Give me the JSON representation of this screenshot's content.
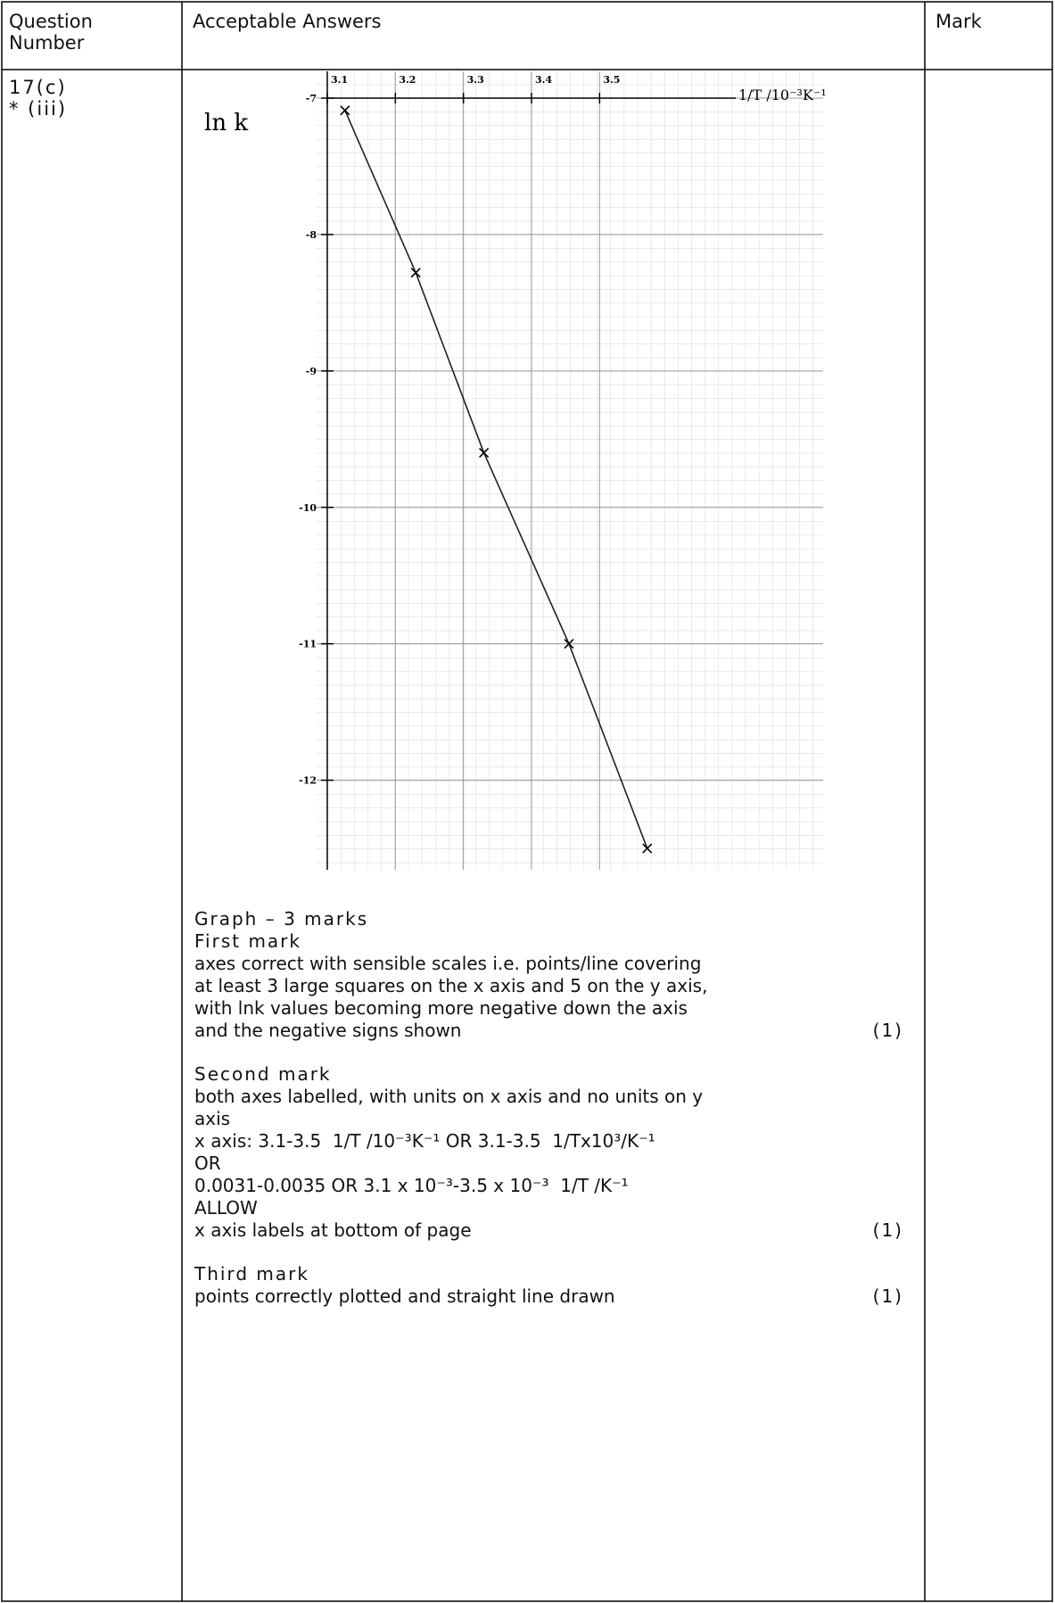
{
  "header": {
    "question_number": "Question Number",
    "acceptable_answers": "Acceptable Answers",
    "mark": "Mark"
  },
  "question": {
    "number": "17(c)",
    "part": "* (iii)"
  },
  "graph": {
    "y_label": "ln k",
    "x_label": "1/T /10⁻³K⁻¹",
    "xlim": [
      3.1,
      3.7
    ],
    "ylim": [
      -12.65,
      -7
    ],
    "xticks": [
      3.1,
      3.2,
      3.3,
      3.4,
      3.5
    ],
    "yticks": [
      -7,
      -8,
      -9,
      -10,
      -11,
      -12
    ],
    "points": {
      "x": [
        3.126,
        3.23,
        3.33,
        3.455,
        3.57
      ],
      "y": [
        -7.09,
        -8.28,
        -9.6,
        -11.0,
        -12.5
      ]
    }
  },
  "answer": {
    "title": "Graph – 3 marks",
    "marks": [
      {
        "heading": "First mark",
        "lines": [
          "axes correct with sensible scales i.e. points/line covering",
          "at least 3 large squares on the x axis and 5 on the y axis,",
          "with lnk values becoming more negative down the axis",
          "and the negative signs shown"
        ],
        "score": "(1)"
      },
      {
        "heading": "Second mark",
        "lines": [
          "both axes labelled, with units on x axis and no units on y",
          "axis",
          "x axis: 3.1-3.5  1/T /10⁻³K⁻¹ OR 3.1-3.5  1/Tx10³/K⁻¹",
          "OR",
          "0.0031-0.0035 OR 3.1 x 10⁻³-3.5 x 10⁻³  1/T /K⁻¹",
          "ALLOW",
          "x axis labels at bottom of page"
        ],
        "score": "(1)"
      },
      {
        "heading": "Third mark",
        "lines": [
          "points correctly plotted and straight line drawn"
        ],
        "score": "(1)"
      }
    ]
  }
}
